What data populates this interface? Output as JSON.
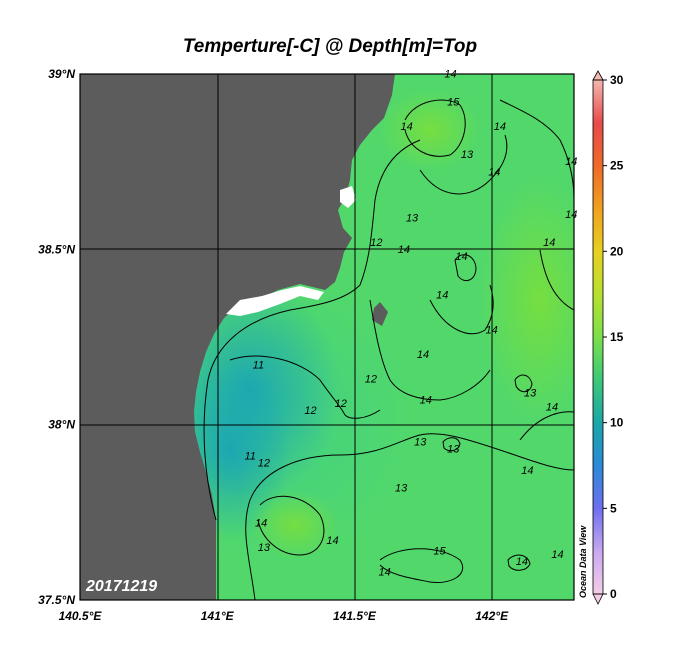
{
  "title": "Temperture[-C] @ Depth[m]=Top",
  "date_stamp": "20171219",
  "credit": "Ocean Data View",
  "map": {
    "lon_range": [
      140.5,
      142.3
    ],
    "lat_range": [
      37.5,
      39.0
    ],
    "land_color": "#5c5c5c",
    "grid_color": "#000000"
  },
  "lon_ticks": [
    {
      "value": 140.5,
      "label": "140.5°E"
    },
    {
      "value": 141.0,
      "label": "141°E"
    },
    {
      "value": 141.5,
      "label": "141.5°E"
    },
    {
      "value": 142.0,
      "label": "142°E"
    }
  ],
  "lat_ticks": [
    {
      "value": 39.0,
      "label": "39°N"
    },
    {
      "value": 38.5,
      "label": "38.5°N"
    },
    {
      "value": 38.0,
      "label": "38°N"
    },
    {
      "value": 37.5,
      "label": "37.5°N"
    }
  ],
  "colorbar": {
    "variable": "Temperture[-C]",
    "min": 0,
    "max": 30,
    "ticks": [
      {
        "value": 30,
        "label": "30"
      },
      {
        "value": 25,
        "label": "25"
      },
      {
        "value": 20,
        "label": "20"
      },
      {
        "value": 15,
        "label": "15"
      },
      {
        "value": 10,
        "label": "10"
      },
      {
        "value": 5,
        "label": "5"
      },
      {
        "value": 0,
        "label": "0"
      }
    ],
    "stops": [
      "#f5cde8",
      "#c8a8f0",
      "#6e6ef0",
      "#2a8ad8",
      "#1aa6a8",
      "#3cc878",
      "#7ce04a",
      "#b8e030",
      "#e8d020",
      "#f0a020",
      "#ee6a2a",
      "#e84a4a",
      "#f3b8b0"
    ]
  },
  "chart_data": {
    "type": "heatmap",
    "title": "Temperture[-C] @ Depth[m]=Top",
    "variable": "Temperture[-C]",
    "date": "20171219",
    "x_range": [
      140.5,
      142.3
    ],
    "y_range": [
      37.5,
      39.0
    ],
    "x_ticks": [
      "140.5°E",
      "141°E",
      "141.5°E",
      "142°E"
    ],
    "y_ticks": [
      "39°N",
      "38.5°N",
      "38°N",
      "37.5°N"
    ],
    "colorbar_range": [
      0,
      30
    ],
    "contour_labels": [
      {
        "lon": 141.85,
        "lat": 38.99,
        "value": "14"
      },
      {
        "lon": 141.86,
        "lat": 38.91,
        "value": "15"
      },
      {
        "lon": 141.69,
        "lat": 38.84,
        "value": "14"
      },
      {
        "lon": 141.91,
        "lat": 38.76,
        "value": "13"
      },
      {
        "lon": 142.03,
        "lat": 38.84,
        "value": "14"
      },
      {
        "lon": 142.01,
        "lat": 38.71,
        "value": "14"
      },
      {
        "lon": 142.29,
        "lat": 38.74,
        "value": "14"
      },
      {
        "lon": 142.29,
        "lat": 38.59,
        "value": "14"
      },
      {
        "lon": 141.71,
        "lat": 38.58,
        "value": "13"
      },
      {
        "lon": 141.68,
        "lat": 38.49,
        "value": "14"
      },
      {
        "lon": 141.58,
        "lat": 38.51,
        "value": "12"
      },
      {
        "lon": 141.89,
        "lat": 38.47,
        "value": "14"
      },
      {
        "lon": 142.21,
        "lat": 38.51,
        "value": "14"
      },
      {
        "lon": 141.82,
        "lat": 38.36,
        "value": "14"
      },
      {
        "lon": 142.0,
        "lat": 38.26,
        "value": "14"
      },
      {
        "lon": 141.75,
        "lat": 38.19,
        "value": "14"
      },
      {
        "lon": 141.56,
        "lat": 38.12,
        "value": "12"
      },
      {
        "lon": 141.45,
        "lat": 38.05,
        "value": "12"
      },
      {
        "lon": 141.34,
        "lat": 38.03,
        "value": "12"
      },
      {
        "lon": 141.15,
        "lat": 38.16,
        "value": "11"
      },
      {
        "lon": 141.76,
        "lat": 38.06,
        "value": "14"
      },
      {
        "lon": 142.14,
        "lat": 38.08,
        "value": "13"
      },
      {
        "lon": 142.22,
        "lat": 38.04,
        "value": "14"
      },
      {
        "lon": 141.74,
        "lat": 37.94,
        "value": "13"
      },
      {
        "lon": 141.86,
        "lat": 37.92,
        "value": "13"
      },
      {
        "lon": 141.12,
        "lat": 37.9,
        "value": "11"
      },
      {
        "lon": 141.17,
        "lat": 37.88,
        "value": "12"
      },
      {
        "lon": 141.67,
        "lat": 37.81,
        "value": "13"
      },
      {
        "lon": 142.13,
        "lat": 37.86,
        "value": "14"
      },
      {
        "lon": 141.16,
        "lat": 37.71,
        "value": "14"
      },
      {
        "lon": 141.17,
        "lat": 37.64,
        "value": "13"
      },
      {
        "lon": 141.42,
        "lat": 37.66,
        "value": "14"
      },
      {
        "lon": 141.81,
        "lat": 37.63,
        "value": "15"
      },
      {
        "lon": 142.11,
        "lat": 37.6,
        "value": "14"
      },
      {
        "lon": 142.24,
        "lat": 37.62,
        "value": "14"
      },
      {
        "lon": 141.61,
        "lat": 37.57,
        "value": "14"
      }
    ]
  }
}
